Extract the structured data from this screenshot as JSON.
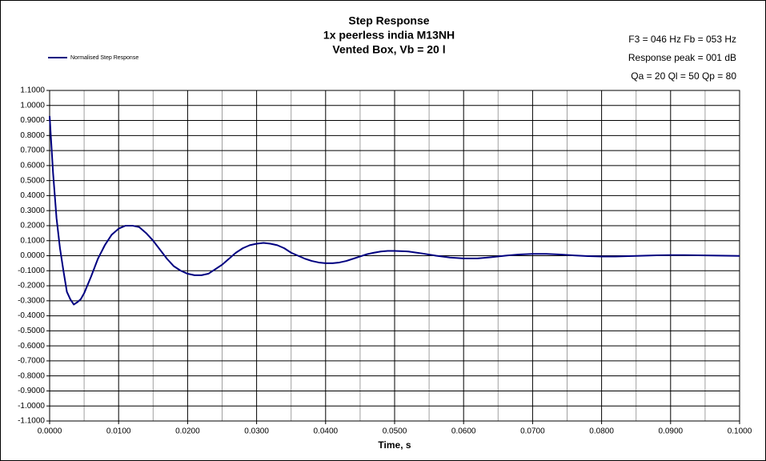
{
  "chart_data": {
    "type": "line",
    "title": [
      "Step Response",
      "1x peerless india M13NH",
      "Vented Box, Vb = 20 l"
    ],
    "annotations": [
      "F3 = 046 Hz  Fb = 053 Hz",
      "Response peak = 001 dB",
      "Qa = 20  Ql = 50  Qp = 80"
    ],
    "x_label": "Time, s",
    "legend": "top-left",
    "grid": true,
    "x": [
      0,
      0.0005,
      0.001,
      0.0015,
      0.002,
      0.0025,
      0.003,
      0.0035,
      0.004,
      0.0045,
      0.005,
      0.006,
      0.007,
      0.008,
      0.009,
      0.01,
      0.011,
      0.012,
      0.013,
      0.014,
      0.015,
      0.016,
      0.017,
      0.018,
      0.019,
      0.02,
      0.021,
      0.022,
      0.023,
      0.024,
      0.025,
      0.026,
      0.027,
      0.028,
      0.029,
      0.03,
      0.031,
      0.032,
      0.033,
      0.034,
      0.035,
      0.036,
      0.037,
      0.038,
      0.039,
      0.04,
      0.041,
      0.042,
      0.043,
      0.044,
      0.045,
      0.046,
      0.047,
      0.048,
      0.049,
      0.05,
      0.052,
      0.054,
      0.056,
      0.058,
      0.06,
      0.062,
      0.064,
      0.066,
      0.068,
      0.07,
      0.072,
      0.074,
      0.076,
      0.078,
      0.08,
      0.082,
      0.084,
      0.086,
      0.088,
      0.09,
      0.092,
      0.094,
      0.096,
      0.098,
      0.1
    ],
    "series": [
      {
        "name": "Normalised Step Response",
        "color": "#000080",
        "values": [
          0.93,
          0.55,
          0.25,
          0.05,
          -0.1,
          -0.24,
          -0.29,
          -0.325,
          -0.31,
          -0.29,
          -0.25,
          -0.14,
          -0.02,
          0.07,
          0.14,
          0.18,
          0.2,
          0.2,
          0.19,
          0.15,
          0.1,
          0.04,
          -0.02,
          -0.07,
          -0.1,
          -0.12,
          -0.13,
          -0.13,
          -0.12,
          -0.09,
          -0.06,
          -0.02,
          0.02,
          0.05,
          0.07,
          0.08,
          0.085,
          0.08,
          0.07,
          0.05,
          0.02,
          0,
          -0.02,
          -0.035,
          -0.045,
          -0.05,
          -0.05,
          -0.045,
          -0.035,
          -0.02,
          -0.005,
          0.01,
          0.02,
          0.028,
          0.032,
          0.032,
          0.028,
          0.015,
          0,
          -0.012,
          -0.018,
          -0.018,
          -0.01,
          0,
          0.008,
          0.012,
          0.012,
          0.008,
          0.002,
          -0.003,
          -0.005,
          -0.005,
          -0.003,
          0,
          0.003,
          0.004,
          0.004,
          0.003,
          0.001,
          0,
          -0.001
        ]
      }
    ],
    "xlim": [
      0,
      0.1
    ],
    "xticks": [
      {
        "value": 0,
        "label": "0.0000"
      },
      {
        "value": 0.01,
        "label": "0.0100"
      },
      {
        "value": 0.02,
        "label": "0.0200"
      },
      {
        "value": 0.03,
        "label": "0.0300"
      },
      {
        "value": 0.04,
        "label": "0.0400"
      },
      {
        "value": 0.05,
        "label": "0.0500"
      },
      {
        "value": 0.06,
        "label": "0.0600"
      },
      {
        "value": 0.07,
        "label": "0.0700"
      },
      {
        "value": 0.08,
        "label": "0.0800"
      },
      {
        "value": 0.09,
        "label": "0.0900"
      },
      {
        "value": 0.1,
        "label": "0.1000"
      }
    ],
    "ylim": [
      -1.1,
      1.1
    ],
    "yticks": [
      {
        "value": 1.1,
        "label": "1.1000"
      },
      {
        "value": 1.0,
        "label": "1.0000"
      },
      {
        "value": 0.9,
        "label": "0.9000"
      },
      {
        "value": 0.8,
        "label": "0.8000"
      },
      {
        "value": 0.7,
        "label": "0.7000"
      },
      {
        "value": 0.6,
        "label": "0.6000"
      },
      {
        "value": 0.5,
        "label": "0.5000"
      },
      {
        "value": 0.4,
        "label": "0.4000"
      },
      {
        "value": 0.3,
        "label": "0.3000"
      },
      {
        "value": 0.2,
        "label": "0.2000"
      },
      {
        "value": 0.1,
        "label": "0.1000"
      },
      {
        "value": 0,
        "label": "0.0000"
      },
      {
        "value": -0.1,
        "label": "-0.1000"
      },
      {
        "value": -0.2,
        "label": "-0.2000"
      },
      {
        "value": -0.3,
        "label": "-0.3000"
      },
      {
        "value": -0.4,
        "label": "-0.4000"
      },
      {
        "value": -0.5,
        "label": "-0.5000"
      },
      {
        "value": -0.6,
        "label": "-0.6000"
      },
      {
        "value": -0.7,
        "label": "-0.7000"
      },
      {
        "value": -0.8,
        "label": "-0.8000"
      },
      {
        "value": -0.9,
        "label": "-0.9000"
      },
      {
        "value": -1.0,
        "label": "-1.0000"
      },
      {
        "value": -1.1,
        "label": "-1.1000"
      }
    ]
  }
}
